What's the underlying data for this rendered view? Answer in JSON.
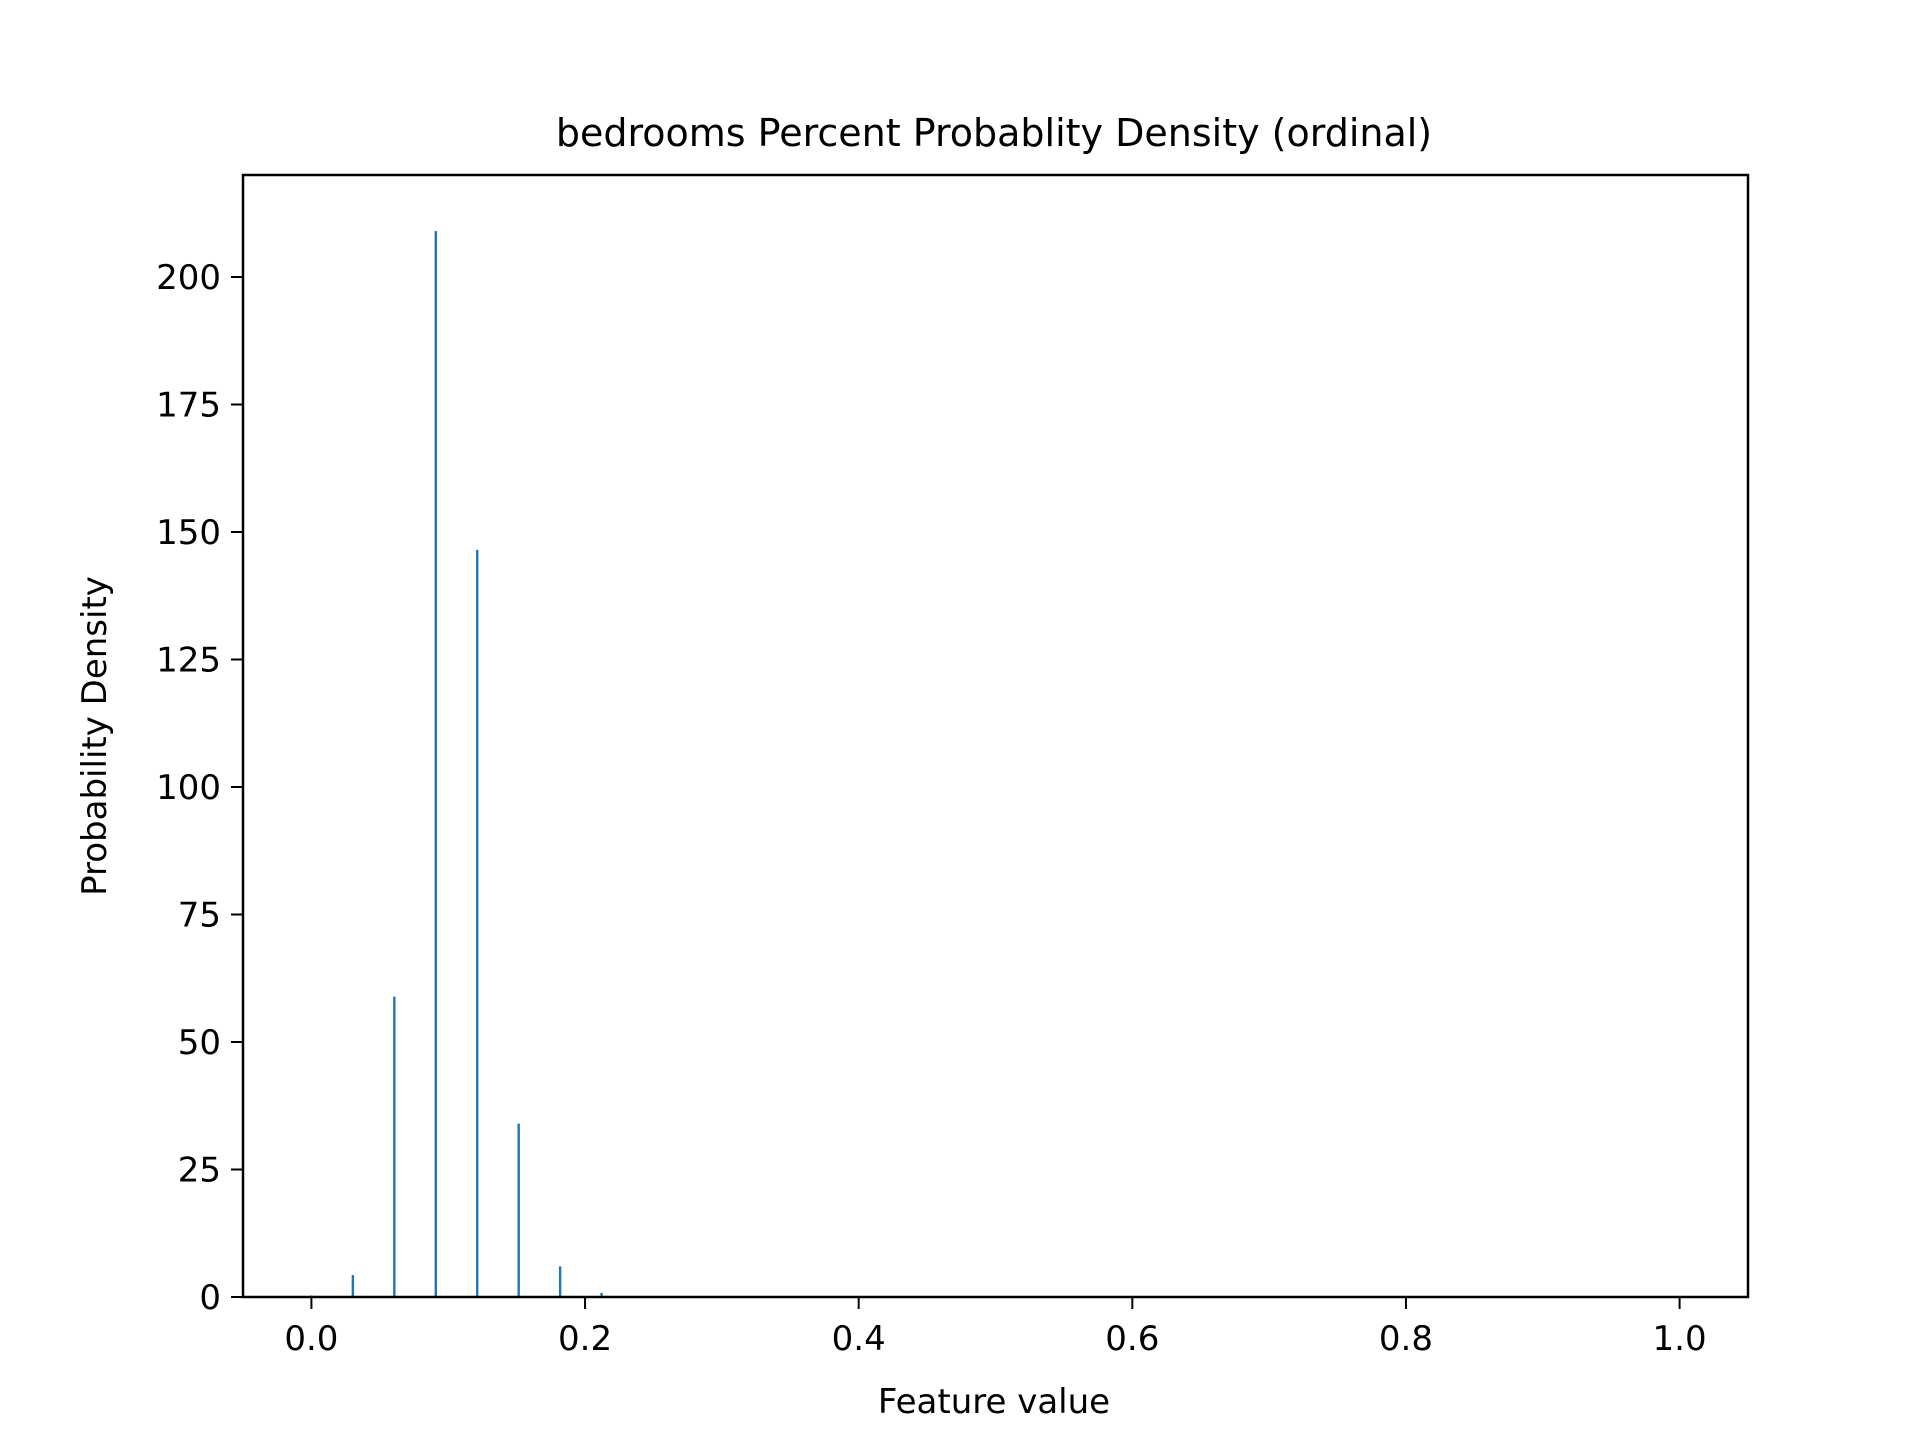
{
  "chart_data": {
    "type": "bar",
    "title": "bedrooms Percent Probablity Density (ordinal)",
    "xlabel": "Feature value",
    "ylabel": "Probability Density",
    "xlim": [
      -0.05,
      1.05
    ],
    "ylim": [
      0,
      220
    ],
    "xticks": [
      0.0,
      0.2,
      0.4,
      0.6,
      0.8,
      1.0
    ],
    "xtick_labels": [
      "0.0",
      "0.2",
      "0.4",
      "0.6",
      "0.8",
      "1.0"
    ],
    "yticks": [
      0,
      25,
      50,
      75,
      100,
      125,
      150,
      175,
      200
    ],
    "ytick_labels": [
      "0",
      "25",
      "50",
      "75",
      "100",
      "125",
      "150",
      "175",
      "200"
    ],
    "grid": false,
    "color": "#1f77b4",
    "series": [
      {
        "x": [
          0.0,
          0.0303,
          0.0606,
          0.0909,
          0.1212,
          0.1515,
          0.1818,
          0.2121,
          0.2424
        ],
        "values": [
          0.3,
          4.3,
          58.9,
          209.0,
          146.5,
          34.0,
          6.0,
          0.8,
          0.2
        ]
      }
    ]
  }
}
